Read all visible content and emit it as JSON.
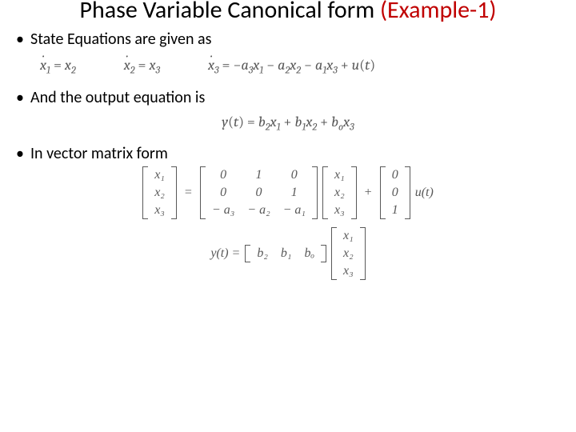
{
  "title": {
    "part1": "Phase Variable Canonical form ",
    "part2": "(Example-1)"
  },
  "colors": {
    "title_black": "#000000",
    "title_red": "#c00000",
    "body_text": "#000000",
    "math_text": "#595959",
    "background": "#ffffff"
  },
  "fonts": {
    "body_family": "Calibri",
    "math_family": "Cambria Math / Times New Roman",
    "title_size_pt": 30,
    "bullet_size_pt": 20,
    "math_size_pt": 18,
    "matrix_size_pt": 16
  },
  "bullets": {
    "b1": "State Equations are given as",
    "b2": "And the output equation is",
    "b3": "In vector matrix form"
  },
  "state_eqs": {
    "e1_lhs": "ẋ₁",
    "e1_rhs": "x₂",
    "e2_lhs": "ẋ₂",
    "e2_rhs": "x₃",
    "e3_lhs": "ẋ₃",
    "e3_rhs": "−a₃x₁ − a₂x₂ − a₁x₃ + u(t)"
  },
  "output_eq": "y(t) = b₂x₁ + b₁x₂ + bₒx₃",
  "matrix_form": {
    "xdot_vec": [
      "x₁",
      "x₂",
      "x₃"
    ],
    "A": [
      [
        "0",
        "1",
        "0"
      ],
      [
        "0",
        "0",
        "1"
      ],
      [
        "− a₃",
        "− a₂",
        "− a₁"
      ]
    ],
    "x_vec": [
      "x₁",
      "x₂",
      "x₃"
    ],
    "B": [
      "0",
      "0",
      "1"
    ],
    "u": "u(t)",
    "y_lhs": "y(t) =",
    "C": [
      "b₂",
      "b₁",
      "bₒ"
    ],
    "x_vec2": [
      "x₁",
      "x₂",
      "x₃"
    ]
  }
}
